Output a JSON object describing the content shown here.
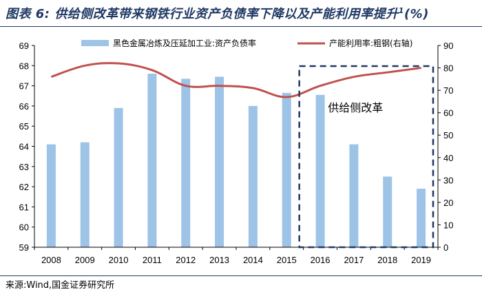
{
  "title": {
    "prefix": "图表 6:",
    "text": "供给侧改革带来钢铁行业资产负债率下降以及产能利用率提升",
    "footnote": "1",
    "unit": "(%)"
  },
  "source": "来源:Wind,国金证券研究所",
  "chart_data": {
    "type": "bar",
    "categories": [
      "2008",
      "2009",
      "2010",
      "2011",
      "2012",
      "2013",
      "2014",
      "2015",
      "2016",
      "2017",
      "2018",
      "2019"
    ],
    "series": [
      {
        "name": "黑色金属冶炼及压延加工业:资产负债率",
        "type": "bar",
        "axis": "left",
        "color": "#9dc3e6",
        "values": [
          64.1,
          64.2,
          65.9,
          67.6,
          67.35,
          67.45,
          66.0,
          66.65,
          66.55,
          64.1,
          62.5,
          61.9
        ]
      },
      {
        "name": "产能利用率:粗钢(右轴)",
        "type": "line",
        "axis": "right",
        "color": "#c0504d",
        "values": [
          76,
          81,
          82,
          79,
          72,
          72,
          71,
          67,
          72,
          76,
          78,
          80
        ]
      }
    ],
    "y_left": {
      "min": 59,
      "max": 69,
      "ticks": [
        59,
        60,
        61,
        62,
        63,
        64,
        65,
        66,
        67,
        68,
        69
      ]
    },
    "y_right": {
      "min": 0,
      "max": 90,
      "ticks": [
        0,
        10,
        20,
        30,
        40,
        50,
        60,
        70,
        80,
        90
      ]
    },
    "legend_position": "top",
    "annotation": {
      "text": "供给侧改革",
      "highlight_from": "2016",
      "highlight_to": "2019",
      "style": "dashed-box",
      "color": "#1f3864"
    },
    "grid": false
  }
}
